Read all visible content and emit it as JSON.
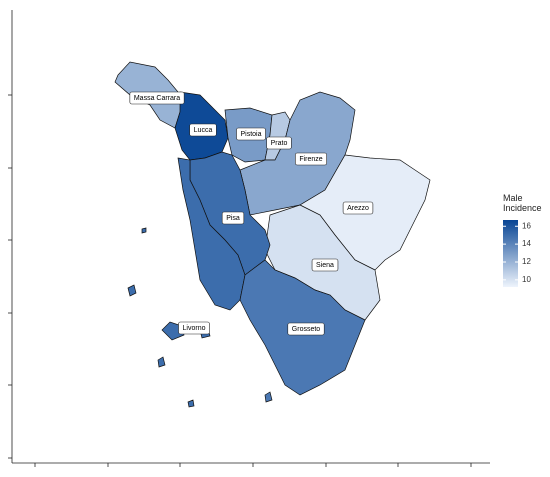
{
  "chart_data": {
    "type": "choropleth",
    "legend_title": "Male Incidence",
    "categories": [
      "Massa Carrara",
      "Lucca",
      "Pistoia",
      "Prato",
      "Firenze",
      "Arezzo",
      "Siena",
      "Pisa",
      "Livorno",
      "Grosseto"
    ],
    "values": [
      12,
      16.5,
      13,
      11,
      12.5,
      9.5,
      10,
      15,
      15,
      14.5
    ],
    "colorlim": [
      9.2,
      16.7
    ],
    "colorticks": [
      10,
      12,
      14,
      16
    ],
    "low_color": "#eef4fc",
    "high_color": "#084594"
  }
}
